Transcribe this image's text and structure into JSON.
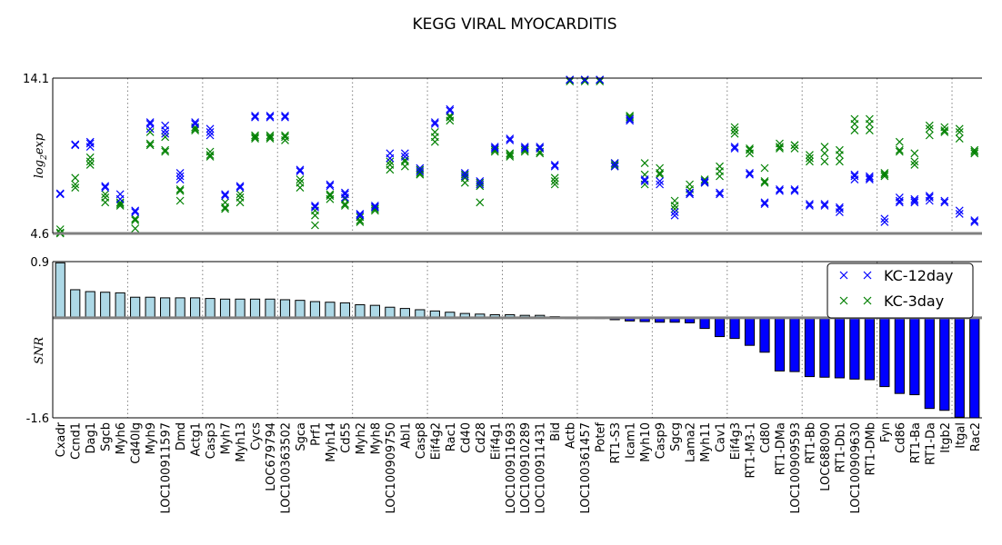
{
  "chart_data": {
    "type": "scatter+bar",
    "title": "KEGG VIRAL MYOCARDITIS",
    "colors": {
      "kc12": "#0000ff",
      "kc3": "#008000",
      "bar_pos": "#add8e6",
      "bar_neg": "#0000ff",
      "separator": "#808080"
    },
    "top_panel": {
      "ylabel": "log2exp",
      "ylim": [
        4.6,
        14.1
      ],
      "ytick_labels": [
        "14.1",
        "4.6"
      ]
    },
    "bottom_panel": {
      "ylabel": "SNR",
      "ylim": [
        -1.6,
        0.9
      ],
      "ytick_labels": [
        "0.9",
        "-1.6"
      ]
    },
    "legend": {
      "position": "top-right",
      "entries": [
        {
          "name": "KC-12day",
          "color": "#0000ff"
        },
        {
          "name": "KC-3day",
          "color": "#008000"
        }
      ]
    },
    "group_boundaries_after_index": [
      4,
      9,
      14,
      19,
      24,
      29,
      34,
      39,
      44,
      49,
      54,
      59,
      64,
      69
    ],
    "genes": [
      {
        "name": "Cxadr",
        "snr": 0.88,
        "kc12": [
          7.05,
          7.0
        ],
        "kc3": [
          4.6,
          4.85,
          4.65
        ]
      },
      {
        "name": "Ccnd1",
        "snr": 0.45,
        "kc12": [
          10.0,
          10.05
        ],
        "kc3": [
          7.6,
          7.4,
          8.0
        ]
      },
      {
        "name": "Dag1",
        "snr": 0.42,
        "kc12": [
          10.1,
          10.2,
          9.9
        ],
        "kc3": [
          8.8,
          9.0,
          9.25
        ]
      },
      {
        "name": "Sgcb",
        "snr": 0.41,
        "kc12": [
          7.5,
          7.4
        ],
        "kc3": [
          6.8,
          6.5,
          7.0
        ]
      },
      {
        "name": "Myh6",
        "snr": 0.4,
        "kc12": [
          7.0,
          6.7
        ],
        "kc3": [
          6.3,
          6.5,
          6.4
        ]
      },
      {
        "name": "Cd40lg",
        "snr": 0.33,
        "kc12": [
          6.0,
          5.9
        ],
        "kc3": [
          4.9,
          5.5,
          5.4
        ]
      },
      {
        "name": "Myh9",
        "snr": 0.33,
        "kc12": [
          11.4,
          11.3,
          11.0
        ],
        "kc3": [
          10.1,
          10.0,
          10.8
        ]
      },
      {
        "name": "LOC100911597",
        "snr": 0.32,
        "kc12": [
          11.2,
          10.7,
          10.9
        ],
        "kc3": [
          9.7,
          9.6,
          10.5
        ]
      },
      {
        "name": "Dmd",
        "snr": 0.32,
        "kc12": [
          8.3,
          8.1,
          7.9
        ],
        "kc3": [
          7.2,
          6.6,
          7.3
        ]
      },
      {
        "name": "Actg1",
        "snr": 0.32,
        "kc12": [
          11.4,
          11.3
        ],
        "kc3": [
          11.0,
          10.9,
          11.1
        ]
      },
      {
        "name": "Casp3",
        "snr": 0.31,
        "kc12": [
          11.0,
          10.6,
          10.8
        ],
        "kc3": [
          9.6,
          9.3,
          9.4
        ]
      },
      {
        "name": "Myh7",
        "snr": 0.3,
        "kc12": [
          6.9,
          7.0
        ],
        "kc3": [
          6.2,
          6.1,
          6.5
        ]
      },
      {
        "name": "Myh13",
        "snr": 0.3,
        "kc12": [
          7.5,
          7.4
        ],
        "kc3": [
          6.5,
          6.8,
          7.0
        ]
      },
      {
        "name": "Cycs",
        "snr": 0.3,
        "kc12": [
          11.8,
          11.7
        ],
        "kc3": [
          10.6,
          10.4,
          10.5
        ]
      },
      {
        "name": "LOC679794",
        "snr": 0.3,
        "kc12": [
          11.8,
          11.7
        ],
        "kc3": [
          10.6,
          10.5,
          10.4
        ]
      },
      {
        "name": "LOC100363502",
        "snr": 0.29,
        "kc12": [
          11.8,
          11.7
        ],
        "kc3": [
          10.5,
          10.6,
          10.3
        ]
      },
      {
        "name": "Sgca",
        "snr": 0.28,
        "kc12": [
          8.5,
          8.4
        ],
        "kc3": [
          7.7,
          7.4,
          7.9
        ]
      },
      {
        "name": "Prf1",
        "snr": 0.26,
        "kc12": [
          6.3,
          6.2
        ],
        "kc3": [
          5.7,
          5.1,
          6.0
        ]
      },
      {
        "name": "Myh14",
        "snr": 0.25,
        "kc12": [
          7.5,
          7.6
        ],
        "kc3": [
          6.9,
          6.7,
          7.0
        ]
      },
      {
        "name": "Cd55",
        "snr": 0.24,
        "kc12": [
          7.1,
          7.0,
          6.8
        ],
        "kc3": [
          6.7,
          6.4,
          6.3
        ]
      },
      {
        "name": "Myh2",
        "snr": 0.21,
        "kc12": [
          5.8,
          5.7
        ],
        "kc3": [
          5.6,
          5.3,
          5.4
        ]
      },
      {
        "name": "Myh8",
        "snr": 0.2,
        "kc12": [
          6.3,
          6.2
        ],
        "kc3": [
          6.1,
          6.0,
          6.2
        ]
      },
      {
        "name": "LOC100909750",
        "snr": 0.17,
        "kc12": [
          9.5,
          9.2
        ],
        "kc3": [
          9.0,
          8.8,
          8.5
        ]
      },
      {
        "name": "Abl1",
        "snr": 0.15,
        "kc12": [
          9.5,
          9.3
        ],
        "kc3": [
          9.1,
          9.0,
          8.7
        ]
      },
      {
        "name": "Casp8",
        "snr": 0.13,
        "kc12": [
          8.6,
          8.4
        ],
        "kc3": [
          8.5,
          8.3,
          8.2
        ]
      },
      {
        "name": "Eif4g2",
        "snr": 0.11,
        "kc12": [
          11.3,
          11.4
        ],
        "kc3": [
          10.2,
          10.5,
          10.8
        ]
      },
      {
        "name": "Rac1",
        "snr": 0.09,
        "kc12": [
          12.2,
          12.1
        ],
        "kc3": [
          11.7,
          11.5,
          11.8
        ]
      },
      {
        "name": "Cd40",
        "snr": 0.07,
        "kc12": [
          8.3,
          8.1
        ],
        "kc3": [
          8.0,
          7.7,
          8.2
        ]
      },
      {
        "name": "Cd28",
        "snr": 0.06,
        "kc12": [
          7.8,
          7.6
        ],
        "kc3": [
          7.5,
          7.7,
          6.5
        ]
      },
      {
        "name": "Eif4g1",
        "snr": 0.05,
        "kc12": [
          9.9,
          9.8
        ],
        "kc3": [
          9.7,
          9.6,
          9.8
        ]
      },
      {
        "name": "LOC100911693",
        "snr": 0.05,
        "kc12": [
          10.3,
          10.4
        ],
        "kc3": [
          9.4,
          9.5,
          9.3
        ]
      },
      {
        "name": "LOC100910289",
        "snr": 0.04,
        "kc12": [
          9.9,
          9.8
        ],
        "kc3": [
          9.7,
          9.6,
          9.8
        ]
      },
      {
        "name": "LOC100911431",
        "snr": 0.04,
        "kc12": [
          9.9,
          9.8
        ],
        "kc3": [
          9.6,
          9.8,
          9.5
        ]
      },
      {
        "name": "Bid",
        "snr": 0.02,
        "kc12": [
          8.8,
          8.7
        ],
        "kc3": [
          7.8,
          7.6,
          8.0
        ]
      },
      {
        "name": "Actb",
        "snr": -0.01,
        "kc12": [
          14.0,
          14.0
        ],
        "kc3": [
          14.0,
          13.9,
          14.0
        ]
      },
      {
        "name": "LOC100361457",
        "snr": -0.01,
        "kc12": [
          14.0,
          14.0
        ],
        "kc3": [
          14.0,
          13.9,
          14.0
        ]
      },
      {
        "name": "Potef",
        "snr": -0.01,
        "kc12": [
          14.0,
          14.0
        ],
        "kc3": [
          14.0,
          13.9,
          14.0
        ]
      },
      {
        "name": "RT1-S3",
        "snr": -0.03,
        "kc12": [
          8.9,
          8.7
        ],
        "kc3": [
          8.8,
          8.7,
          8.9
        ]
      },
      {
        "name": "Icam1",
        "snr": -0.05,
        "kc12": [
          11.6,
          11.5
        ],
        "kc3": [
          11.8,
          11.7,
          11.6
        ]
      },
      {
        "name": "Myh10",
        "snr": -0.06,
        "kc12": [
          7.8,
          7.9
        ],
        "kc3": [
          7.6,
          8.2,
          8.9
        ]
      },
      {
        "name": "Casp9",
        "snr": -0.07,
        "kc12": [
          7.8,
          7.6
        ],
        "kc3": [
          8.6,
          8.3,
          8.2
        ]
      },
      {
        "name": "Sgcg",
        "snr": -0.07,
        "kc12": [
          5.9,
          5.7
        ],
        "kc3": [
          6.3,
          6.1,
          6.6
        ]
      },
      {
        "name": "Lama2",
        "snr": -0.08,
        "kc12": [
          7.0,
          7.1
        ],
        "kc3": [
          7.3,
          7.6,
          7.1
        ]
      },
      {
        "name": "Myh11",
        "snr": -0.17,
        "kc12": [
          7.8,
          7.7
        ],
        "kc3": [
          7.8,
          7.9,
          7.7
        ]
      },
      {
        "name": "Cav1",
        "snr": -0.3,
        "kc12": [
          7.1,
          7.0
        ],
        "kc3": [
          8.7,
          8.4,
          8.1
        ]
      },
      {
        "name": "Eif4g3",
        "snr": -0.33,
        "kc12": [
          9.9,
          9.8
        ],
        "kc3": [
          11.1,
          10.9,
          10.7
        ]
      },
      {
        "name": "RT1-M3-1",
        "snr": -0.44,
        "kc12": [
          8.3,
          8.2
        ],
        "kc3": [
          9.8,
          9.7,
          9.5
        ]
      },
      {
        "name": "Cd80",
        "snr": -0.55,
        "kc12": [
          6.5,
          6.4
        ],
        "kc3": [
          7.8,
          8.6,
          7.7
        ]
      },
      {
        "name": "RT1-DMa",
        "snr": -0.85,
        "kc12": [
          7.3,
          7.2
        ],
        "kc3": [
          10.1,
          9.8,
          9.9
        ]
      },
      {
        "name": "LOC100909593",
        "snr": -0.86,
        "kc12": [
          7.3,
          7.2
        ],
        "kc3": [
          10.0,
          9.8,
          10.0
        ]
      },
      {
        "name": "RT1-Bb",
        "snr": -0.94,
        "kc12": [
          6.4,
          6.3
        ],
        "kc3": [
          9.4,
          9.2,
          9.0
        ]
      },
      {
        "name": "LOC688090",
        "snr": -0.95,
        "kc12": [
          6.4,
          6.3
        ],
        "kc3": [
          9.9,
          9.5,
          9.0
        ]
      },
      {
        "name": "RT1-Db1",
        "snr": -0.96,
        "kc12": [
          6.2,
          6.1,
          5.9
        ],
        "kc3": [
          9.7,
          9.4,
          9.0
        ]
      },
      {
        "name": "LOC100909630",
        "snr": -0.98,
        "kc12": [
          8.1,
          7.9,
          8.2
        ],
        "kc3": [
          11.6,
          11.3,
          10.9
        ]
      },
      {
        "name": "RT1-DMb",
        "snr": -0.99,
        "kc12": [
          8.1,
          8.0,
          7.9
        ],
        "kc3": [
          11.6,
          11.3,
          10.9
        ]
      },
      {
        "name": "Fyn",
        "snr": -1.1,
        "kc12": [
          5.5,
          5.3
        ],
        "kc3": [
          8.2,
          8.1,
          8.3
        ]
      },
      {
        "name": "Cd86",
        "snr": -1.21,
        "kc12": [
          6.8,
          6.6,
          6.5
        ],
        "kc3": [
          10.2,
          9.6,
          9.7
        ]
      },
      {
        "name": "RT1-Ba",
        "snr": -1.23,
        "kc12": [
          6.6,
          6.5,
          6.7
        ],
        "kc3": [
          9.0,
          8.8,
          9.5
        ]
      },
      {
        "name": "RT1-Da",
        "snr": -1.45,
        "kc12": [
          6.9,
          6.8,
          6.6
        ],
        "kc3": [
          11.2,
          11.0,
          10.6
        ]
      },
      {
        "name": "Itgb2",
        "snr": -1.48,
        "kc12": [
          6.6,
          6.5
        ],
        "kc3": [
          11.1,
          10.9,
          10.8
        ]
      },
      {
        "name": "Itgal",
        "snr": -1.59,
        "kc12": [
          6.0,
          5.8
        ],
        "kc3": [
          11.0,
          10.8,
          10.4
        ]
      },
      {
        "name": "Rac2",
        "snr": -1.6,
        "kc12": [
          5.4,
          5.3
        ],
        "kc3": [
          9.6,
          9.5,
          9.7
        ]
      }
    ]
  }
}
